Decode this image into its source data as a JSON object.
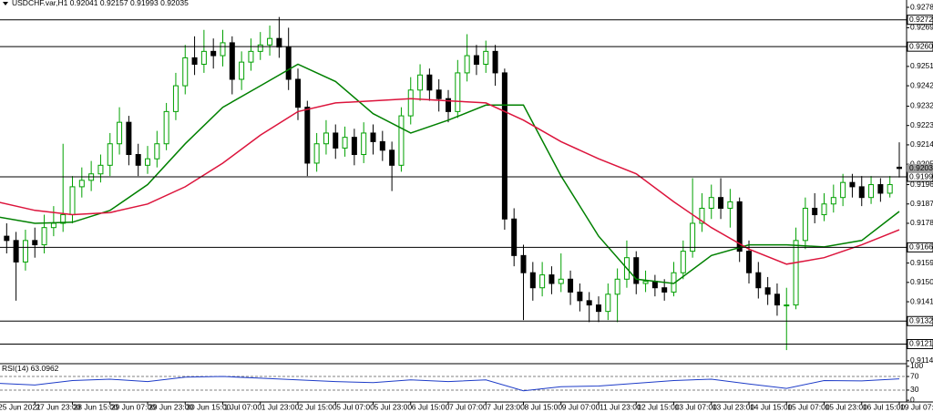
{
  "chart_data": {
    "type": "candlestick",
    "symbol": "USDCHF.var,H1",
    "quote": [
      0.92041,
      0.92157,
      0.91993,
      0.92035
    ],
    "categories": [
      "25 Jun 2021",
      null,
      null,
      null,
      "27 Jun 23:00",
      null,
      null,
      null,
      "28 Jun 15:00",
      null,
      null,
      null,
      "29 Jun 07:00",
      null,
      null,
      null,
      "29 Jun 23:00",
      null,
      null,
      null,
      "30 Jun 15:00",
      null,
      null,
      null,
      "1 Jul 07:00",
      null,
      null,
      null,
      "1 Jul 23:00",
      null,
      null,
      null,
      "2 Jul 15:00",
      null,
      null,
      null,
      "5 Jul 07:00",
      null,
      null,
      null,
      "5 Jul 23:00",
      null,
      null,
      null,
      "6 Jul 15:00",
      null,
      null,
      null,
      "7 Jul 07:00",
      null,
      null,
      null,
      "7 Jul 23:00",
      null,
      null,
      null,
      "8 Jul 15:00",
      null,
      null,
      null,
      "9 Jul 07:00",
      null,
      null,
      null,
      "11 Jul 23:00",
      null,
      null,
      null,
      "12 Jul 15:00",
      null,
      null,
      null,
      "13 Jul 07:00",
      null,
      null,
      null,
      "13 Jul 23:00",
      null,
      null,
      null,
      "14 Jul 15:00",
      null,
      null,
      null,
      "15 Jul 07:00",
      null,
      null,
      null,
      "15 Jul 23:00",
      null,
      null,
      null,
      "16 Jul 15:00",
      null,
      null,
      null,
      "19 Jul 07:00"
    ],
    "open": [
      0.9175,
      0.9172,
      0.917,
      0.916,
      0.917,
      0.9168,
      0.9176,
      0.9178,
      0.9182,
      0.9195,
      0.9198,
      0.9201,
      0.9205,
      0.9215,
      0.9225,
      0.921,
      0.9205,
      0.9208,
      0.9215,
      0.923,
      0.9242,
      0.9255,
      0.9252,
      0.9258,
      0.9256,
      0.9262,
      0.9245,
      0.9253,
      0.9258,
      0.9261,
      0.9264,
      0.926,
      0.9245,
      0.9232,
      0.9206,
      0.9215,
      0.922,
      0.9213,
      0.9218,
      0.921,
      0.922,
      0.9216,
      0.9212,
      0.9205,
      0.9228,
      0.924,
      0.9247,
      0.924,
      0.9236,
      0.923,
      0.9248,
      0.9256,
      0.9252,
      0.9258,
      0.9248,
      0.918,
      0.9163,
      0.9155,
      0.9148,
      0.9154,
      0.915,
      0.9152,
      0.9146,
      0.9142,
      0.914,
      0.9137,
      0.9145,
      0.9152,
      0.9162,
      0.915,
      0.9151,
      0.9148,
      0.9146,
      0.9155,
      0.9165,
      0.9178,
      0.9185,
      0.919,
      0.9185,
      0.9188,
      0.9165,
      0.9155,
      0.9148,
      0.9145,
      0.914,
      0.914,
      0.917,
      0.9185,
      0.9182,
      0.9187,
      0.919,
      0.9197,
      0.9195,
      0.919,
      0.9196,
      0.9192,
      0.92041
    ],
    "high": [
      0.918,
      0.9178,
      0.9174,
      0.9175,
      0.9176,
      0.9182,
      0.9186,
      0.9215,
      0.92,
      0.9204,
      0.9207,
      0.921,
      0.922,
      0.9232,
      0.9228,
      0.9215,
      0.9214,
      0.9221,
      0.9234,
      0.9248,
      0.9261,
      0.9265,
      0.9268,
      0.9264,
      0.9268,
      0.9265,
      0.9258,
      0.9264,
      0.9267,
      0.927,
      0.9274,
      0.9269,
      0.925,
      0.9235,
      0.922,
      0.9226,
      0.9224,
      0.9223,
      0.9222,
      0.9225,
      0.9224,
      0.9221,
      0.9216,
      0.9232,
      0.9246,
      0.9252,
      0.925,
      0.9245,
      0.924,
      0.9254,
      0.9266,
      0.9261,
      0.9263,
      0.9261,
      0.925,
      0.9185,
      0.9168,
      0.916,
      0.916,
      0.9158,
      0.9164,
      0.9156,
      0.915,
      0.9146,
      0.9144,
      0.915,
      0.9157,
      0.917,
      0.9165,
      0.9156,
      0.9154,
      0.9152,
      0.916,
      0.917,
      0.9199,
      0.9192,
      0.9196,
      0.9199,
      0.9194,
      0.919,
      0.917,
      0.916,
      0.9153,
      0.915,
      0.9148,
      0.9176,
      0.919,
      0.9192,
      0.9192,
      0.9196,
      0.9201,
      0.9201,
      0.92,
      0.92,
      0.9199,
      0.92,
      0.92157
    ],
    "low": [
      0.9168,
      0.9164,
      0.9142,
      0.9156,
      0.9162,
      0.9164,
      0.9172,
      0.9174,
      0.9178,
      0.919,
      0.9193,
      0.9197,
      0.92,
      0.921,
      0.9205,
      0.92,
      0.9201,
      0.9204,
      0.9212,
      0.9226,
      0.9238,
      0.9247,
      0.9248,
      0.925,
      0.9251,
      0.9238,
      0.924,
      0.9249,
      0.9254,
      0.9256,
      0.9255,
      0.924,
      0.9226,
      0.92,
      0.9202,
      0.921,
      0.9208,
      0.9209,
      0.9205,
      0.9206,
      0.921,
      0.9207,
      0.9193,
      0.9202,
      0.9224,
      0.9235,
      0.9235,
      0.923,
      0.9225,
      0.9227,
      0.9244,
      0.9247,
      0.9248,
      0.9242,
      0.9175,
      0.9158,
      0.9133,
      0.9142,
      0.9144,
      0.9145,
      0.9146,
      0.914,
      0.9137,
      0.9132,
      0.9132,
      0.9133,
      0.9132,
      0.9148,
      0.9145,
      0.9146,
      0.9144,
      0.9142,
      0.9144,
      0.9152,
      0.9162,
      0.9174,
      0.918,
      0.918,
      0.9176,
      0.916,
      0.915,
      0.9143,
      0.914,
      0.9135,
      0.9119,
      0.9138,
      0.9166,
      0.9178,
      0.9179,
      0.9183,
      0.9186,
      0.919,
      0.9186,
      0.9187,
      0.9188,
      0.919,
      0.91993
    ],
    "close": [
      0.9172,
      0.917,
      0.916,
      0.917,
      0.9168,
      0.9176,
      0.9178,
      0.9182,
      0.9195,
      0.9198,
      0.9201,
      0.9205,
      0.9215,
      0.9225,
      0.921,
      0.9205,
      0.9208,
      0.9215,
      0.923,
      0.9242,
      0.9255,
      0.9252,
      0.9258,
      0.9256,
      0.9262,
      0.9245,
      0.9253,
      0.9258,
      0.9261,
      0.9264,
      0.926,
      0.9245,
      0.9232,
      0.9206,
      0.9215,
      0.922,
      0.9213,
      0.9218,
      0.921,
      0.922,
      0.9216,
      0.9212,
      0.9205,
      0.9228,
      0.924,
      0.9247,
      0.924,
      0.9236,
      0.923,
      0.9248,
      0.9256,
      0.9252,
      0.9258,
      0.9248,
      0.918,
      0.9163,
      0.9155,
      0.9148,
      0.9154,
      0.915,
      0.9152,
      0.9146,
      0.9142,
      0.914,
      0.9137,
      0.9145,
      0.9152,
      0.9162,
      0.915,
      0.9151,
      0.9148,
      0.9146,
      0.9155,
      0.9165,
      0.9178,
      0.9185,
      0.919,
      0.9185,
      0.9188,
      0.9165,
      0.9155,
      0.9148,
      0.9145,
      0.914,
      0.914,
      0.917,
      0.9185,
      0.9182,
      0.9187,
      0.919,
      0.9197,
      0.9195,
      0.919,
      0.9196,
      0.9192,
      0.9196,
      0.92035
    ],
    "up_color": "#00a000",
    "down_color": "#000000",
    "ylim": [
      0.91131,
      0.92819
    ],
    "yticks": [
      0.92785,
      {
        "value": 0.9269,
        "label": "0.92690"
      },
      {
        "value": 0.9251,
        "label": "0.92510"
      },
      {
        "value": 0.9242,
        "label": "0.92420"
      },
      0.92325,
      0.92235,
      0.92145,
      0.92055,
      {
        "value": 0.9196,
        "label": "0.91960"
      },
      {
        "value": 0.9187,
        "label": "0.91870"
      },
      {
        "value": 0.9178,
        "label": "0.91780"
      },
      0.91595,
      0.91505,
      0.91415,
      {
        "value": 0.9114,
        "label": "0.91140"
      }
    ],
    "levels": [
      0.92727,
      0.92602,
      0.91996,
      0.91668,
      0.91325,
      0.91218
    ],
    "level_color": "#000000",
    "moving_averages": [
      {
        "color": "#008000",
        "x": [
          0,
          4,
          8,
          12,
          16,
          20,
          24,
          28,
          32,
          36,
          40,
          44,
          48,
          52,
          56,
          60,
          64,
          68,
          72,
          76,
          80,
          84,
          88,
          92,
          96
        ],
        "values": [
          0.9181,
          0.9178,
          0.91785,
          0.9184,
          0.9196,
          0.9215,
          0.9232,
          0.9242,
          0.9252,
          0.9244,
          0.9229,
          0.922,
          0.9226,
          0.9233,
          0.9233,
          0.92,
          0.9172,
          0.9152,
          0.915,
          0.9163,
          0.9168,
          0.9168,
          0.9167,
          0.917,
          0.91835
        ]
      },
      {
        "color": "#dc143c",
        "x": [
          0,
          4,
          8,
          12,
          16,
          20,
          24,
          28,
          32,
          36,
          40,
          44,
          48,
          52,
          56,
          60,
          64,
          68,
          72,
          76,
          80,
          84,
          88,
          92,
          96
        ],
        "values": [
          0.9188,
          0.9184,
          0.9182,
          0.9183,
          0.9187,
          0.9195,
          0.9206,
          0.9219,
          0.923,
          0.9234,
          0.9235,
          0.9236,
          0.9235,
          0.9234,
          0.9226,
          0.9216,
          0.9208,
          0.9201,
          0.9188,
          0.9176,
          0.9166,
          0.9159,
          0.9162,
          0.9168,
          0.9175
        ]
      }
    ],
    "rsi": {
      "label": "RSI(14)",
      "value": 63.0962,
      "color": "#1e3cc8",
      "x": [
        0,
        4,
        8,
        12,
        16,
        20,
        24,
        28,
        32,
        36,
        40,
        44,
        48,
        52,
        56,
        60,
        64,
        68,
        72,
        76,
        80,
        84,
        88,
        92,
        96
      ],
      "values": [
        50,
        45,
        58,
        62,
        55,
        68,
        70,
        65,
        60,
        55,
        52,
        60,
        55,
        60,
        28,
        40,
        42,
        50,
        58,
        62,
        48,
        35,
        58,
        57,
        63.0962
      ],
      "ylim": [
        -5,
        105
      ],
      "yticks": [
        100,
        70,
        30,
        0
      ],
      "levels": [
        70,
        30
      ]
    }
  }
}
